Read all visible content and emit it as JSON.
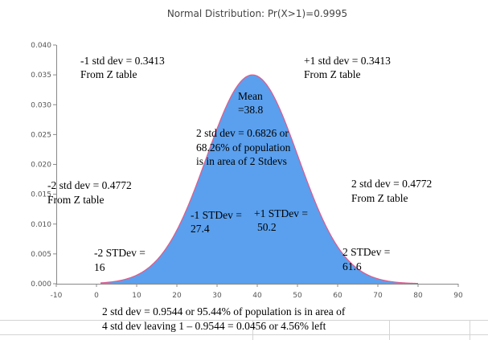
{
  "chart_data": {
    "type": "area",
    "title": "Normal Distribution: Pr(X>1)=0.9995",
    "xlabel": "",
    "ylabel": "",
    "mean": 38.8,
    "std_dev": 11.4,
    "xlim": [
      -10,
      90
    ],
    "ylim": [
      0,
      0.04
    ],
    "x_ticks": [
      -10,
      0,
      10,
      20,
      30,
      40,
      50,
      60,
      70,
      80,
      90
    ],
    "y_ticks": [
      "0.000",
      "0.005",
      "0.010",
      "0.015",
      "0.020",
      "0.025",
      "0.030",
      "0.035",
      "0.040"
    ],
    "shaded_range": [
      1,
      80
    ],
    "grid": false,
    "colors": {
      "fill": "#5aa0ee",
      "line": "#e05a8a"
    }
  },
  "annotations": {
    "minus1_line1": "-1 std dev = 0.3413",
    "minus1_line2": "From Z table",
    "plus1_line1": "+1 std dev = 0.3413",
    "plus1_line2": "From Z table",
    "mean_line1": "Mean",
    "mean_line2": "=38.8",
    "two_sd_line1": "2 std dev = 0.6826 or",
    "two_sd_line2": "68.26% of population",
    "two_sd_line3": "is in area of 2 Stdevs",
    "minus2_line1": "-2 std dev = 0.4772",
    "minus2_line2": "From Z table",
    "plus2_line1": "2 std dev = 0.4772",
    "plus2_line2": "From Z table",
    "minus1_stdev_line1": "-1 STDev =",
    "minus1_stdev_line2": "27.4",
    "plus1_stdev_line1": "+1 STDev =",
    "plus1_stdev_line2": "50.2",
    "minus2_stdev_line1": "-2 STDev =",
    "minus2_stdev_line2": "16",
    "plus2_stdev_line1": "2 STDev =",
    "plus2_stdev_line2": "61.6"
  },
  "footer": {
    "line1": "2 std dev = 0.9544 or 95.44% of population is in area of",
    "line2": "4 std dev leaving 1 – 0.9544 = 0.0456 or 4.56% left"
  }
}
